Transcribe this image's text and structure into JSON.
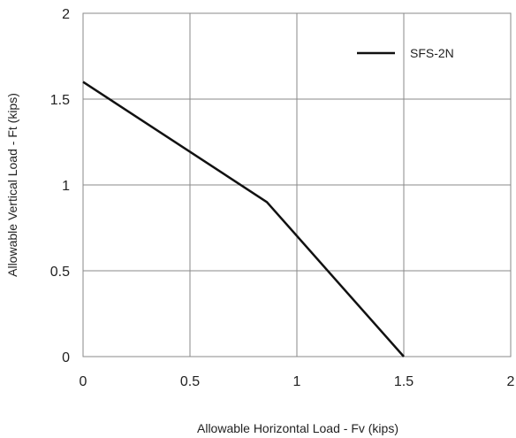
{
  "chart_data": {
    "type": "line",
    "xlabel": "Allowable Horizontal Load - Fv (kips)",
    "ylabel": "Allowable Vertical Load - Ft (kips)",
    "xlim": [
      0,
      2
    ],
    "ylim": [
      0,
      2
    ],
    "x_ticks": [
      0,
      0.5,
      1,
      1.5,
      2
    ],
    "y_ticks": [
      0,
      0.5,
      1,
      1.5,
      2
    ],
    "x_tick_labels": [
      "0",
      "0.5",
      "1",
      "1.5",
      "2"
    ],
    "y_tick_labels": [
      "0",
      "0.5",
      "1",
      "1.5",
      "2"
    ],
    "grid": true,
    "legend_position": "top-right",
    "series": [
      {
        "name": "SFS-2N",
        "color": "#111111",
        "points": [
          {
            "x": 0,
            "y": 1.6
          },
          {
            "x": 0.86,
            "y": 0.9
          },
          {
            "x": 1.5,
            "y": 0
          }
        ]
      }
    ]
  }
}
